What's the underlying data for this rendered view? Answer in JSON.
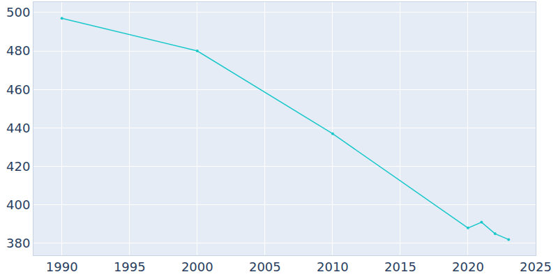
{
  "chart_data": {
    "type": "line",
    "x": [
      1990,
      2000,
      2010,
      2020,
      2021,
      2022,
      2023
    ],
    "values": [
      497,
      480,
      437,
      388,
      391,
      385,
      382
    ],
    "color": "#1ac8cb",
    "marker": "circle",
    "xlim": [
      1987.9,
      2025
    ],
    "xticks": [
      1990,
      1995,
      2000,
      2005,
      2010,
      2015,
      2020,
      2025
    ],
    "ylim": [
      373.8,
      505.4
    ],
    "yticks": [
      380,
      400,
      420,
      440,
      460,
      480,
      500
    ],
    "grid": true
  }
}
